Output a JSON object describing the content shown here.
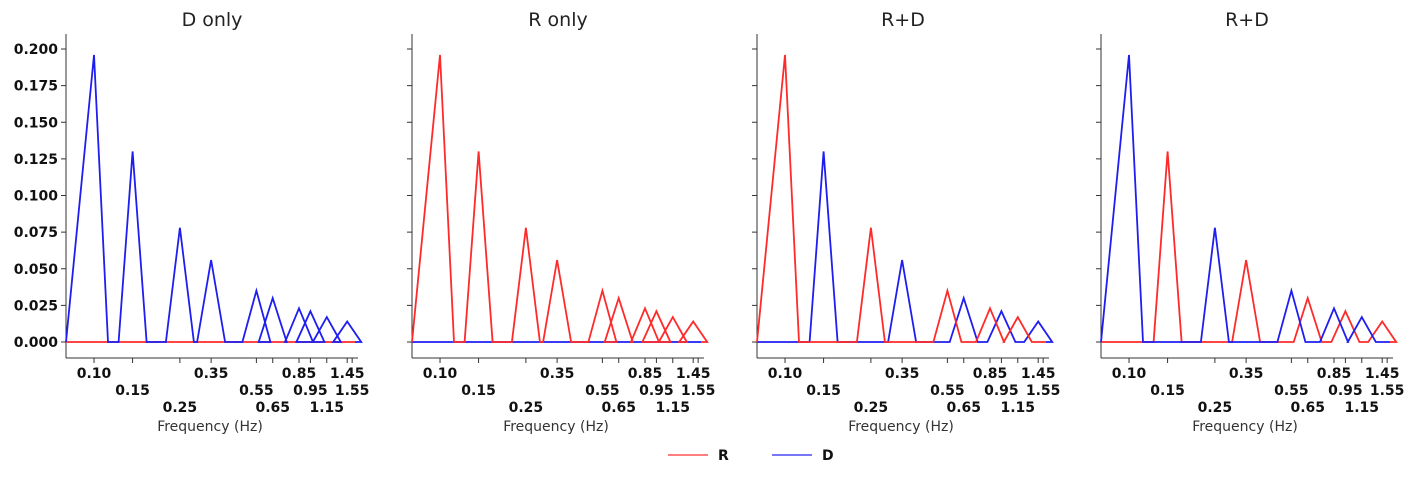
{
  "chart_data": [
    {
      "type": "line",
      "title": "D only",
      "xlabel": "Frequency (Hz)",
      "ylabel": "",
      "ylim": [
        0,
        0.2
      ],
      "yticks": [
        "0.000",
        "0.025",
        "0.050",
        "0.075",
        "0.100",
        "0.125",
        "0.150",
        "0.175",
        "0.200"
      ],
      "xticks": [
        "0.10",
        "0.15",
        "0.25",
        "0.35",
        "0.55",
        "0.65",
        "0.85",
        "0.95",
        "1.15",
        "1.45",
        "1.55"
      ],
      "series": [
        {
          "name": "R",
          "color": "#ff2a2a",
          "peaks": [
            0,
            0,
            0,
            0,
            0,
            0,
            0,
            0,
            0,
            0
          ]
        },
        {
          "name": "D",
          "color": "#1e1ef0",
          "peaks": [
            0.196,
            0.13,
            0.078,
            0.056,
            0.035,
            0.03,
            0.023,
            0.021,
            0.017,
            0.014
          ]
        }
      ]
    },
    {
      "type": "line",
      "title": "R only",
      "xlabel": "Frequency (Hz)",
      "ylabel": "",
      "ylim": [
        0,
        0.2
      ],
      "yticks": [],
      "xticks": [
        "0.10",
        "0.15",
        "0.25",
        "0.35",
        "0.55",
        "0.65",
        "0.85",
        "0.95",
        "1.15",
        "1.45",
        "1.55"
      ],
      "series": [
        {
          "name": "R",
          "color": "#ff2a2a",
          "peaks": [
            0.196,
            0.13,
            0.078,
            0.056,
            0.035,
            0.03,
            0.023,
            0.021,
            0.017,
            0.014
          ]
        },
        {
          "name": "D",
          "color": "#1e1ef0",
          "peaks": [
            0,
            0,
            0,
            0,
            0,
            0,
            0,
            0,
            0,
            0
          ]
        }
      ]
    },
    {
      "type": "line",
      "title": "R+D",
      "xlabel": "Frequency (Hz)",
      "ylabel": "",
      "ylim": [
        0,
        0.2
      ],
      "yticks": [],
      "xticks": [
        "0.10",
        "0.15",
        "0.25",
        "0.35",
        "0.55",
        "0.65",
        "0.85",
        "0.95",
        "1.15",
        "1.45",
        "1.55"
      ],
      "series": [
        {
          "name": "R",
          "color": "#ff2a2a",
          "peaks": [
            0.196,
            0,
            0.078,
            0,
            0.035,
            0,
            0.023,
            0,
            0.017,
            0
          ]
        },
        {
          "name": "D",
          "color": "#1e1ef0",
          "peaks": [
            0,
            0.13,
            0,
            0.056,
            0,
            0.03,
            0,
            0.021,
            0,
            0.014
          ]
        }
      ]
    },
    {
      "type": "line",
      "title": "R+D",
      "xlabel": "Frequency (Hz)",
      "ylabel": "",
      "ylim": [
        0,
        0.2
      ],
      "yticks": [],
      "xticks": [
        "0.10",
        "0.15",
        "0.25",
        "0.35",
        "0.55",
        "0.65",
        "0.85",
        "0.95",
        "1.15",
        "1.45",
        "1.55"
      ],
      "series": [
        {
          "name": "R",
          "color": "#ff2a2a",
          "peaks": [
            0,
            0.13,
            0,
            0.056,
            0,
            0.03,
            0,
            0.021,
            0,
            0.014
          ]
        },
        {
          "name": "D",
          "color": "#1e1ef0",
          "peaks": [
            0.196,
            0,
            0.078,
            0,
            0.035,
            0,
            0.023,
            0,
            0.017,
            0
          ]
        }
      ]
    }
  ],
  "legend": [
    {
      "label": "R",
      "color": "#ff2a2a"
    },
    {
      "label": "D",
      "color": "#1e1ef0"
    }
  ]
}
